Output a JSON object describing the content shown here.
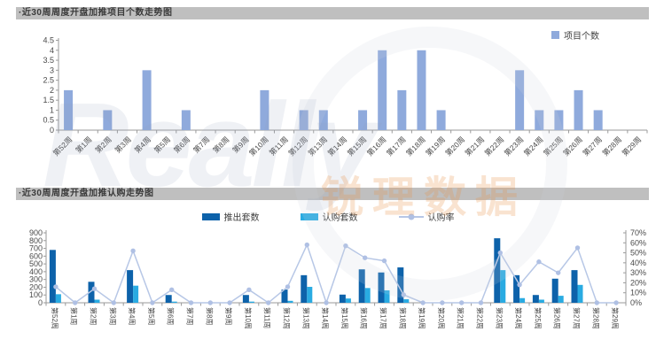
{
  "ui": {
    "watermark": {
      "en": "Really",
      "cn": "锐理数据"
    }
  },
  "colors": {
    "project_bar": "#8FAADC",
    "push_bar": "#0D62AA",
    "subscribe_bar": "#29ABE2",
    "rate_line": "#B7C7E6",
    "rate_marker": "#AFC0E4",
    "header_bg": "#BFBFBF",
    "header_text": "#3A3A3A",
    "axis": "#9A9A9A",
    "axis_label": "#4A4A4A",
    "watermark_gray": "#94A2BC",
    "watermark_orange": "#E8924A"
  },
  "chart_data": [
    {
      "type": "bar",
      "title": "·近30周周度开盘加推项目个数走势图",
      "categories": [
        "第52周",
        "第1周",
        "第2周",
        "第3周",
        "第4周",
        "第5周",
        "第6周",
        "第7周",
        "第8周",
        "第9周",
        "第10周",
        "第11周",
        "第12周",
        "第13周",
        "第14周",
        "第15周",
        "第16周",
        "第17周",
        "第18周",
        "第19周",
        "第20周",
        "第21周",
        "第22周",
        "第23周",
        "第24周",
        "第25周",
        "第26周",
        "第27周",
        "第28周",
        "第29周"
      ],
      "series": [
        {
          "name": "项目个数",
          "type": "bar",
          "values": [
            2,
            0,
            1,
            0,
            3,
            0,
            1,
            0,
            0,
            0,
            2,
            0,
            1,
            1,
            0,
            1,
            4,
            2,
            4,
            1,
            0,
            0,
            0,
            3,
            1,
            1,
            2,
            1,
            0,
            0
          ]
        }
      ],
      "ylim": [
        0,
        4.5
      ],
      "ytick_step": 0.5,
      "grid": false,
      "legend_position": "top-right"
    },
    {
      "type": "bar+line",
      "title": "·近30周周度开盘加推认购走势图",
      "categories": [
        "第52周",
        "第1周",
        "第2周",
        "第3周",
        "第4周",
        "第5周",
        "第6周",
        "第7周",
        "第8周",
        "第9周",
        "第10周",
        "第11周",
        "第12周",
        "第13周",
        "第14周",
        "第15周",
        "第16周",
        "第17周",
        "第18周",
        "第19周",
        "第20周",
        "第21周",
        "第22周",
        "第23周",
        "第24周",
        "第25周",
        "第26周",
        "第27周",
        "第28周",
        "第29周"
      ],
      "series": [
        {
          "name": "推出套数",
          "type": "bar",
          "axis": "left",
          "values": [
            680,
            0,
            270,
            0,
            420,
            0,
            100,
            0,
            0,
            0,
            100,
            0,
            170,
            355,
            0,
            105,
            430,
            390,
            455,
            0,
            0,
            0,
            0,
            830,
            355,
            100,
            310,
            420,
            0,
            0
          ]
        },
        {
          "name": "认购套数",
          "type": "bar",
          "axis": "left",
          "values": [
            110,
            0,
            40,
            0,
            220,
            0,
            15,
            0,
            0,
            0,
            15,
            0,
            25,
            205,
            0,
            55,
            190,
            160,
            45,
            0,
            0,
            0,
            0,
            420,
            60,
            40,
            90,
            230,
            0,
            0
          ]
        },
        {
          "name": "认购率",
          "type": "line",
          "axis": "right",
          "values_percent": [
            16,
            0,
            14,
            0,
            52,
            0,
            13,
            0,
            0,
            0,
            13,
            0,
            16,
            58,
            0,
            57,
            45,
            42,
            8,
            0,
            0,
            0,
            0,
            50,
            18,
            41,
            30,
            55,
            0,
            0
          ]
        }
      ],
      "left_ylim": [
        0,
        900
      ],
      "left_ytick_step": 100,
      "right_ylim_percent": [
        0,
        70
      ],
      "right_ytick_step_percent": 10,
      "grid": false,
      "legend_position": "top-center"
    }
  ]
}
